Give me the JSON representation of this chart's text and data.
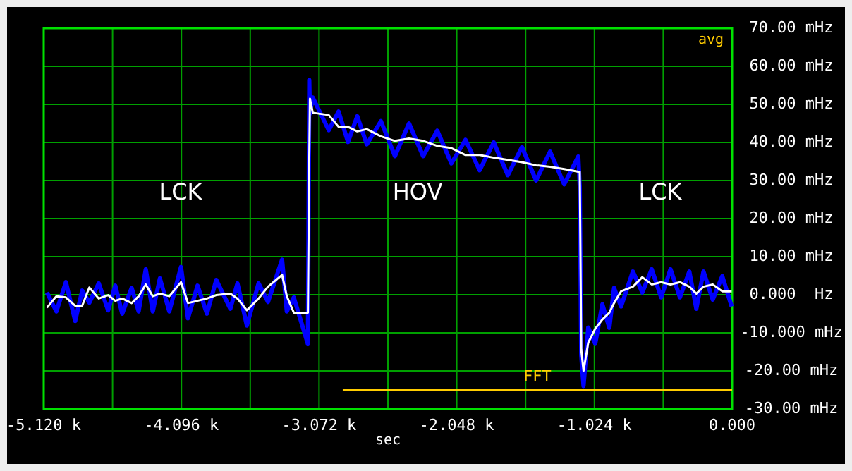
{
  "chart_data": {
    "type": "line",
    "xlabel": "sec",
    "xlim": [
      -5120,
      0
    ],
    "xticks": [
      {
        "value": -5120,
        "label": "-5.120 k"
      },
      {
        "value": -4608,
        "label": null
      },
      {
        "value": -4096,
        "label": "-4.096 k"
      },
      {
        "value": -3584,
        "label": null
      },
      {
        "value": -3072,
        "label": "-3.072 k"
      },
      {
        "value": -2560,
        "label": null
      },
      {
        "value": -2048,
        "label": "-2.048 k"
      },
      {
        "value": -1536,
        "label": null
      },
      {
        "value": -1024,
        "label": "-1.024 k"
      },
      {
        "value": -512,
        "label": null
      },
      {
        "value": 0,
        "label": "0.000"
      }
    ],
    "ylim": [
      -30,
      70
    ],
    "yticks": [
      {
        "value": 70,
        "label": "70.00 mHz"
      },
      {
        "value": 60,
        "label": "60.00 mHz"
      },
      {
        "value": 50,
        "label": "50.00 mHz"
      },
      {
        "value": 40,
        "label": "40.00 mHz"
      },
      {
        "value": 30,
        "label": "30.00 mHz"
      },
      {
        "value": 20,
        "label": "20.00 mHz"
      },
      {
        "value": 10,
        "label": "10.00 mHz"
      },
      {
        "value": 0,
        "label": "0.000  Hz"
      },
      {
        "value": -10,
        "label": "-10.000 mHz"
      },
      {
        "value": -20,
        "label": "-20.00 mHz"
      },
      {
        "value": -30,
        "label": "-30.00 mHz"
      }
    ],
    "grid": true,
    "legend": false,
    "series": [
      {
        "color": "#0000ff",
        "x": [
          -5096,
          -5026,
          -4955,
          -4886,
          -4834,
          -4781,
          -4711,
          -4641,
          -4588,
          -4536,
          -4466,
          -4414,
          -4361,
          -4309,
          -4256,
          -4186,
          -4099,
          -4047,
          -3976,
          -3906,
          -3837,
          -3732,
          -3679,
          -3609,
          -3522,
          -3452,
          -3347,
          -3312,
          -3260,
          -3155,
          -3145,
          -3140,
          -3119,
          -3000,
          -2927,
          -2857,
          -2788,
          -2717,
          -2612,
          -2508,
          -2403,
          -2298,
          -2193,
          -2088,
          -1983,
          -1878,
          -1773,
          -1668,
          -1563,
          -1458,
          -1354,
          -1249,
          -1144,
          -1133,
          -1122,
          -1105,
          -1070,
          -1018,
          -965,
          -913,
          -878,
          -826,
          -738,
          -668,
          -598,
          -528,
          -458,
          -388,
          -318,
          -266,
          -213,
          -144,
          -73,
          -3
        ],
        "values": [
          0.6,
          -4.4,
          3.3,
          -6.9,
          1.1,
          -2.1,
          3.0,
          -4.1,
          2.4,
          -5.0,
          1.8,
          -4.4,
          6.7,
          -4.4,
          4.3,
          -4.4,
          7.3,
          -6.2,
          2.4,
          -5.0,
          3.9,
          -3.7,
          3.0,
          -8.1,
          3.0,
          -1.9,
          9.2,
          -4.4,
          -0.7,
          -13,
          56.4,
          47.5,
          51.8,
          43.2,
          48.1,
          40.1,
          46.9,
          39.5,
          45.6,
          36.4,
          45.0,
          36.4,
          43.1,
          34.5,
          40.7,
          32.7,
          40.0,
          31.4,
          38.8,
          30.0,
          37.6,
          29.0,
          36.3,
          28.3,
          -16,
          -24,
          -8.6,
          -12.9,
          -2.5,
          -8.7,
          1.8,
          -3.1,
          6.1,
          0.6,
          6.7,
          -0.7,
          6.7,
          -0.7,
          6.1,
          -3.7,
          6.1,
          -1.3,
          4.9,
          -3.1
        ]
      },
      {
        "color": "#ffffff",
        "x": [
          -5096,
          -5026,
          -4955,
          -4886,
          -4834,
          -4781,
          -4711,
          -4641,
          -4588,
          -4536,
          -4466,
          -4414,
          -4361,
          -4309,
          -4256,
          -4186,
          -4099,
          -4047,
          -3976,
          -3906,
          -3837,
          -3732,
          -3679,
          -3609,
          -3522,
          -3452,
          -3347,
          -3312,
          -3260,
          -3155,
          -3145,
          -3140,
          -3119,
          -3000,
          -2927,
          -2857,
          -2788,
          -2717,
          -2612,
          -2508,
          -2403,
          -2298,
          -2193,
          -2088,
          -1983,
          -1878,
          -1773,
          -1668,
          -1563,
          -1458,
          -1354,
          -1249,
          -1144,
          -1133,
          -1122,
          -1105,
          -1070,
          -1018,
          -965,
          -913,
          -878,
          -826,
          -738,
          -668,
          -598,
          -528,
          -458,
          -388,
          -318,
          -266,
          -213,
          -144,
          -73,
          -3
        ],
        "values": [
          -3.4,
          -0.4,
          -0.7,
          -2.9,
          -2.9,
          1.9,
          -1.0,
          -0.1,
          -1.6,
          -1.0,
          -2.2,
          -0.4,
          2.7,
          -0.4,
          0.3,
          -0.4,
          3.3,
          -2.2,
          -1.6,
          -1.0,
          -0.1,
          0.3,
          -1.0,
          -4.1,
          -1.0,
          2.1,
          5.2,
          -0.4,
          -4.7,
          -4.7,
          35.6,
          51.5,
          47.8,
          47.2,
          44.1,
          44.1,
          42.9,
          43.5,
          41.6,
          40.4,
          41.0,
          40.4,
          39.1,
          38.5,
          36.7,
          36.7,
          36.0,
          35.4,
          34.8,
          34.0,
          33.6,
          33.0,
          32.3,
          32.3,
          -14.4,
          -20.0,
          -12.6,
          -8.9,
          -6.5,
          -4.7,
          -2.2,
          0.9,
          2.1,
          4.6,
          2.7,
          3.3,
          2.7,
          3.3,
          2.1,
          0.3,
          2.1,
          2.7,
          0.9,
          0.9
        ]
      },
      {
        "name": "FFT",
        "color": "#ffcc00",
        "x": [
          -2896,
          0
        ],
        "values": [
          -25,
          -25
        ]
      }
    ],
    "annotations": [
      "LCK",
      "HOV",
      "LCK",
      "avg"
    ]
  }
}
